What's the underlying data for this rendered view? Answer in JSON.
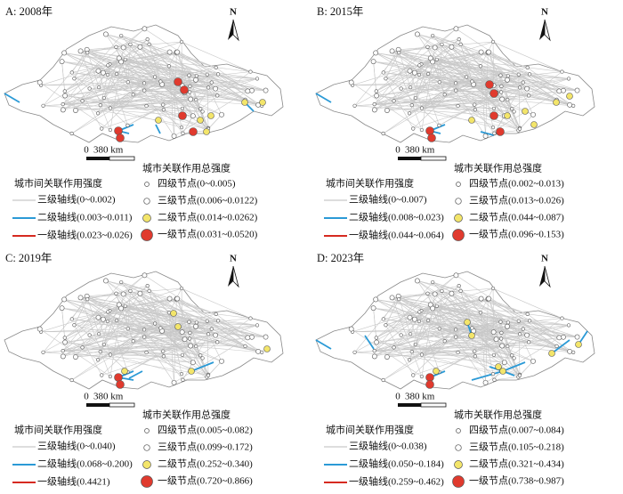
{
  "panels": [
    {
      "title": "A: 2008年",
      "north": "N",
      "scale": {
        "zero": "0",
        "distance": "380 km"
      },
      "line_legend": {
        "title": "城市间关联作用强度",
        "items": [
          "三级轴线(0~0.002)",
          "二级轴线(0.003~0.011)",
          "一级轴线(0.023~0.026)"
        ]
      },
      "node_legend": {
        "title": "城市关联作用总强度",
        "items": [
          "四级节点(0~0.005)",
          "三级节点(0.006~0.0122)",
          "二级节点(0.014~0.0262)",
          "一级节点(0.031~0.0520)"
        ]
      }
    },
    {
      "title": "B: 2015年",
      "north": "N",
      "scale": {
        "zero": "0",
        "distance": "380 km"
      },
      "line_legend": {
        "title": "城市间关联作用强度",
        "items": [
          "三级轴线(0~0.007)",
          "二级轴线(0.008~0.023)",
          "一级轴线(0.044~0.064)"
        ]
      },
      "node_legend": {
        "title": "城市关联作用总强度",
        "items": [
          "四级节点(0.002~0.013)",
          "三级节点(0.013~0.026)",
          "二级节点(0.044~0.087)",
          "一级节点(0.096~0.153)"
        ]
      }
    },
    {
      "title": "C: 2019年",
      "north": "N",
      "scale": {
        "zero": "0",
        "distance": "380 km"
      },
      "line_legend": {
        "title": "城市间关联作用强度",
        "items": [
          "三级轴线(0~0.040)",
          "二级轴线(0.068~0.200)",
          "一级轴线(0.4421)"
        ]
      },
      "node_legend": {
        "title": "城市关联作用总强度",
        "items": [
          "四级节点(0.005~0.082)",
          "三级节点(0.099~0.172)",
          "二级节点(0.252~0.340)",
          "一级节点(0.720~0.866)"
        ]
      }
    },
    {
      "title": "D: 2023年",
      "north": "N",
      "scale": {
        "zero": "0",
        "distance": "380 km"
      },
      "line_legend": {
        "title": "城市间关联作用强度",
        "items": [
          "三级轴线(0~0.038)",
          "二级轴线(0.050~0.184)",
          "一级轴线(0.259~0.462)"
        ]
      },
      "node_legend": {
        "title": "城市关联作用总强度",
        "items": [
          "四级节点(0.007~0.084)",
          "三级节点(0.105~0.218)",
          "二级节点(0.321~0.434)",
          "一级节点(0.738~0.987)"
        ]
      }
    }
  ]
}
